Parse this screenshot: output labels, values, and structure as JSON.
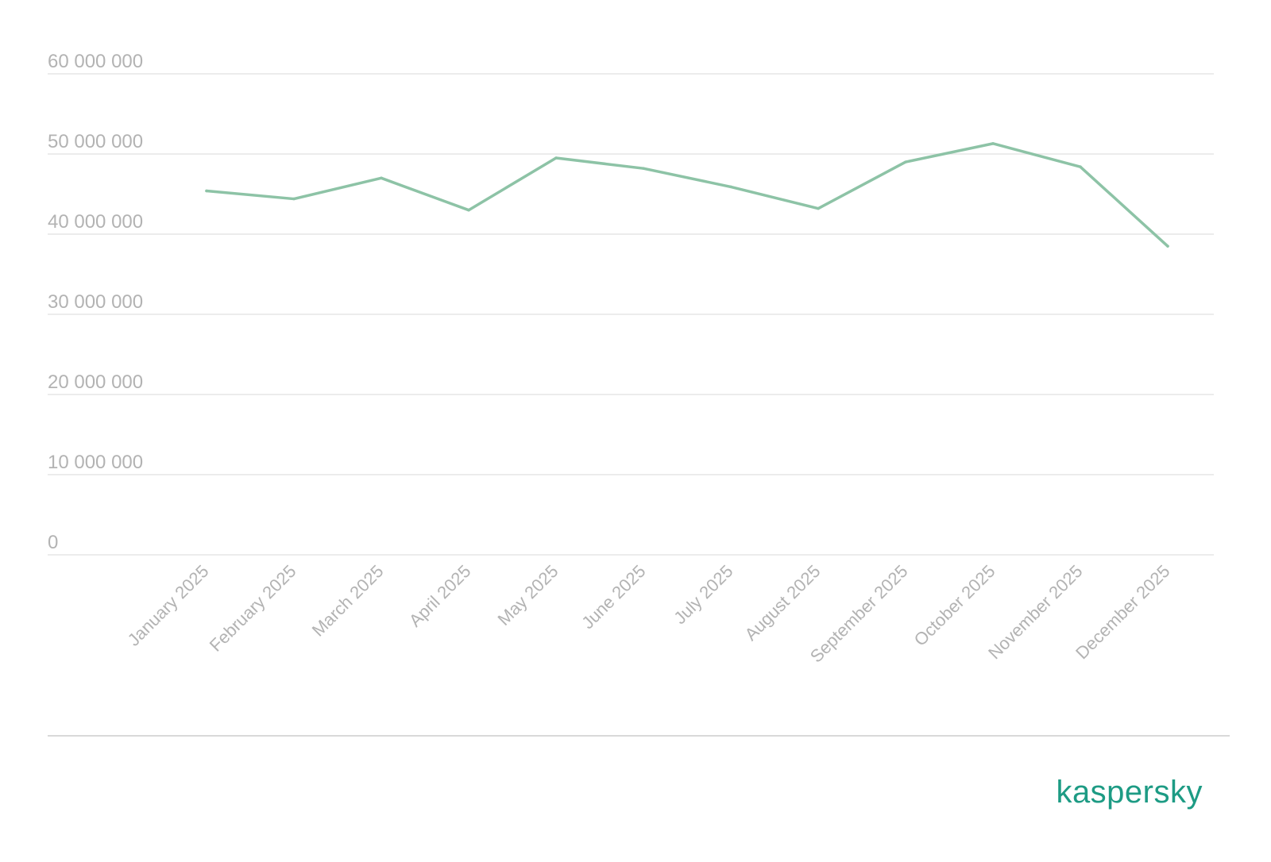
{
  "chart_data": {
    "type": "line",
    "title": "",
    "xlabel": "",
    "ylabel": "",
    "categories": [
      "January 2025",
      "February 2025",
      "March 2025",
      "April 2025",
      "May 2025",
      "June 2025",
      "July 2025",
      "August 2025",
      "September 2025",
      "October 2025",
      "November 2025",
      "December 2025"
    ],
    "series": [
      {
        "values": [
          45400000,
          44400000,
          47000000,
          43000000,
          49500000,
          48200000,
          45900000,
          43200000,
          49000000,
          51300000,
          48400000,
          38500000
        ],
        "color": "#8dc3a6"
      }
    ],
    "yticks": [
      0,
      10000000,
      20000000,
      30000000,
      40000000,
      50000000,
      60000000
    ],
    "ytick_labels": [
      "0",
      "10 000 000",
      "20 000 000",
      "30 000 000",
      "40 000 000",
      "50 000 000",
      "60 000 000"
    ],
    "ylim": [
      0,
      60000000
    ],
    "grid": true,
    "legend": "none"
  },
  "brand": {
    "name": "kaspersky",
    "color": "#1d9b84"
  }
}
